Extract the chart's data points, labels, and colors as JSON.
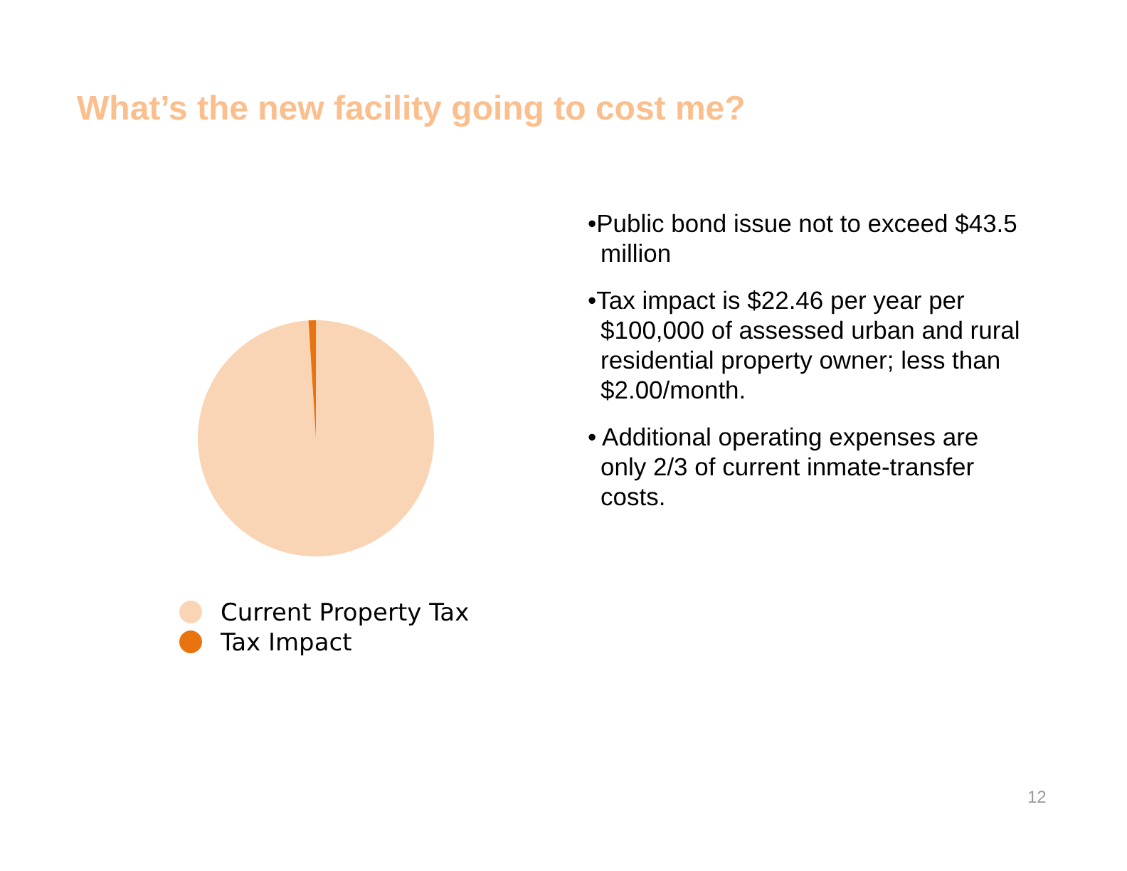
{
  "chart_data": {
    "type": "pie",
    "title": "What’s the new facility going to cost me?",
    "categories": [
      "Current Property Tax",
      "Tax Impact"
    ],
    "values": [
      99,
      1
    ],
    "colors": [
      "#fad5b5",
      "#e8730f"
    ],
    "legend": "bottom",
    "annotations": [
      "•Public bond issue not to exceed $43.5 million",
      "•Tax impact is $22.46 per year per $100,000 of assessed urban and rural residential property owner; less than $2.00/month.",
      "• Additional operating expenses are only 2/3 of current inmate-transfer costs.",
      "12"
    ]
  }
}
